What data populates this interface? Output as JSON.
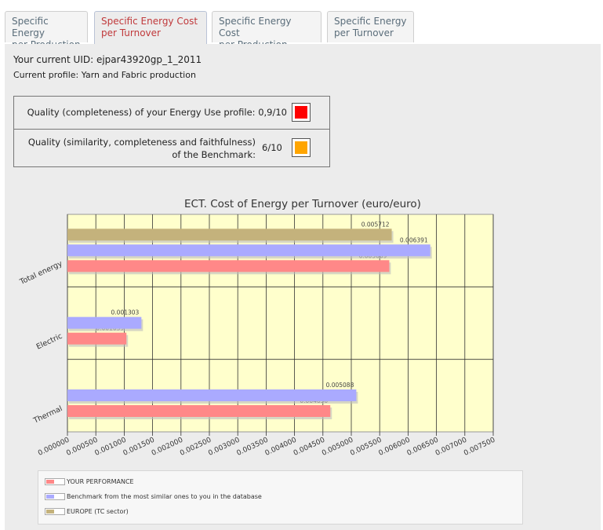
{
  "tabs": [
    {
      "label_line1": "Specific Energy",
      "label_line2": "per Production",
      "active": false
    },
    {
      "label_line1": "Specific Energy Cost",
      "label_line2": "per Turnover",
      "active": true
    },
    {
      "label_line1": "Specific Energy Cost",
      "label_line2": "per Production",
      "active": false
    },
    {
      "label_line1": "Specific Energy",
      "label_line2": "per Turnover",
      "active": false
    }
  ],
  "info": {
    "uid_text": "Your current UID: ejpar43920gp_1_2011",
    "profile_text": "Current profile: Yarn and Fabric production"
  },
  "quality": {
    "completeness_label": "Quality (completeness) of your Energy Use profile:",
    "completeness_value": "0,9/10",
    "completeness_color": "#ff0000",
    "benchmark_label": "Quality (similarity, completeness and faithfulness) of the Benchmark:",
    "benchmark_value": "6/10",
    "benchmark_color": "#ffa500"
  },
  "chart_data": {
    "type": "bar",
    "orientation": "horizontal",
    "title": "ECT. Cost of Energy per Turnover (euro/euro)",
    "categories": [
      "Total energy",
      "Electric",
      "Thermal"
    ],
    "series": [
      {
        "name": "YOUR PERFORMANCE",
        "color": "#ff8888",
        "values": [
          0.005669,
          0.001039,
          0.00463
        ]
      },
      {
        "name": "Benchmark from the most similar ones to you in the database",
        "color": "#aaaaff",
        "values": [
          0.006391,
          0.001303,
          0.005088
        ]
      },
      {
        "name": "EUROPE (TC sector)",
        "color": "#c4b27c",
        "values": [
          0.005712,
          null,
          null
        ]
      }
    ],
    "value_labels": [
      [
        "0.005669",
        "0.001039",
        "0.004630"
      ],
      [
        "0.006391",
        "0.001303",
        "0.005088"
      ],
      [
        "0.005712",
        "",
        ""
      ]
    ],
    "x_ticks": [
      "0.000000",
      "0.000500",
      "0.001000",
      "0.001500",
      "0.002000",
      "0.002500",
      "0.003000",
      "0.003500",
      "0.004000",
      "0.004500",
      "0.005000",
      "0.005500",
      "0.006000",
      "0.006500",
      "0.007000",
      "0.007500"
    ],
    "xlim": [
      0,
      0.0075
    ],
    "grid": true,
    "plot_background": "#ffffcc",
    "legend_position": "bottom"
  }
}
